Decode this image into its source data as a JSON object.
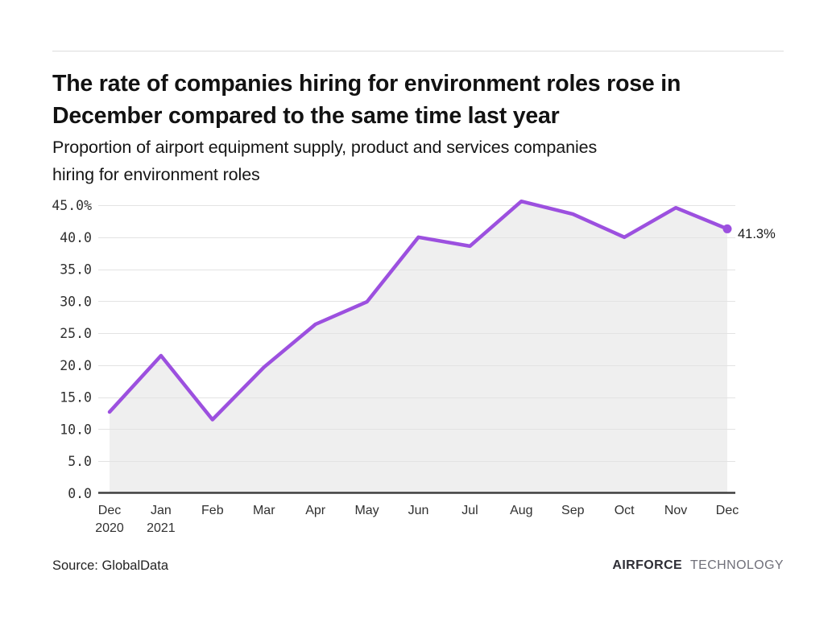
{
  "header": {
    "title_lines": [
      "The rate of companies hiring for environment roles rose in",
      "December compared to the same time last year"
    ],
    "subtitle_lines": [
      "Proportion of airport equipment supply, product and services companies",
      "hiring for environment roles"
    ]
  },
  "chart_data": {
    "type": "line",
    "title": "The rate of companies hiring for environment roles rose in December compared to the same time last year",
    "subtitle": "Proportion of airport equipment supply, product and services companies hiring for environment roles",
    "categories": [
      {
        "label": "Dec",
        "sub": "2020"
      },
      {
        "label": "Jan",
        "sub": "2021"
      },
      {
        "label": "Feb"
      },
      {
        "label": "Mar"
      },
      {
        "label": "Apr"
      },
      {
        "label": "May"
      },
      {
        "label": "Jun"
      },
      {
        "label": "Jul"
      },
      {
        "label": "Aug"
      },
      {
        "label": "Sep"
      },
      {
        "label": "Oct"
      },
      {
        "label": "Nov"
      },
      {
        "label": "Dec"
      }
    ],
    "values": [
      12.7,
      21.5,
      11.5,
      19.7,
      26.4,
      29.9,
      40.0,
      38.6,
      45.6,
      43.6,
      40.0,
      44.6,
      41.3
    ],
    "unit": "%",
    "ylim": [
      0,
      45
    ],
    "y_ticks": [
      {
        "label": "45.0%",
        "value": 45
      },
      {
        "label": "40.0",
        "value": 40
      },
      {
        "label": "35.0",
        "value": 35
      },
      {
        "label": "30.0",
        "value": 30
      },
      {
        "label": "25.0",
        "value": 25
      },
      {
        "label": "20.0",
        "value": 20
      },
      {
        "label": "15.0",
        "value": 15
      },
      {
        "label": "10.0",
        "value": 10
      },
      {
        "label": "5.0",
        "value": 5
      },
      {
        "label": "0.0",
        "value": 0
      }
    ],
    "end_label": "41.3%",
    "grid": "horizontal",
    "legend": "none",
    "area_filled": true,
    "colors": {
      "line": "#9c50df",
      "marker": "#9c50df",
      "area": "#efefef",
      "gridline": "#e3e3e3",
      "axis": "#3f3f3f",
      "tick_text": "#303030",
      "end_label_text": "#1a1a1a"
    }
  },
  "footer": {
    "source": "Source: GlobalData",
    "logo_primary": "AIRFORCE",
    "logo_secondary": "TECHNOLOGY"
  }
}
